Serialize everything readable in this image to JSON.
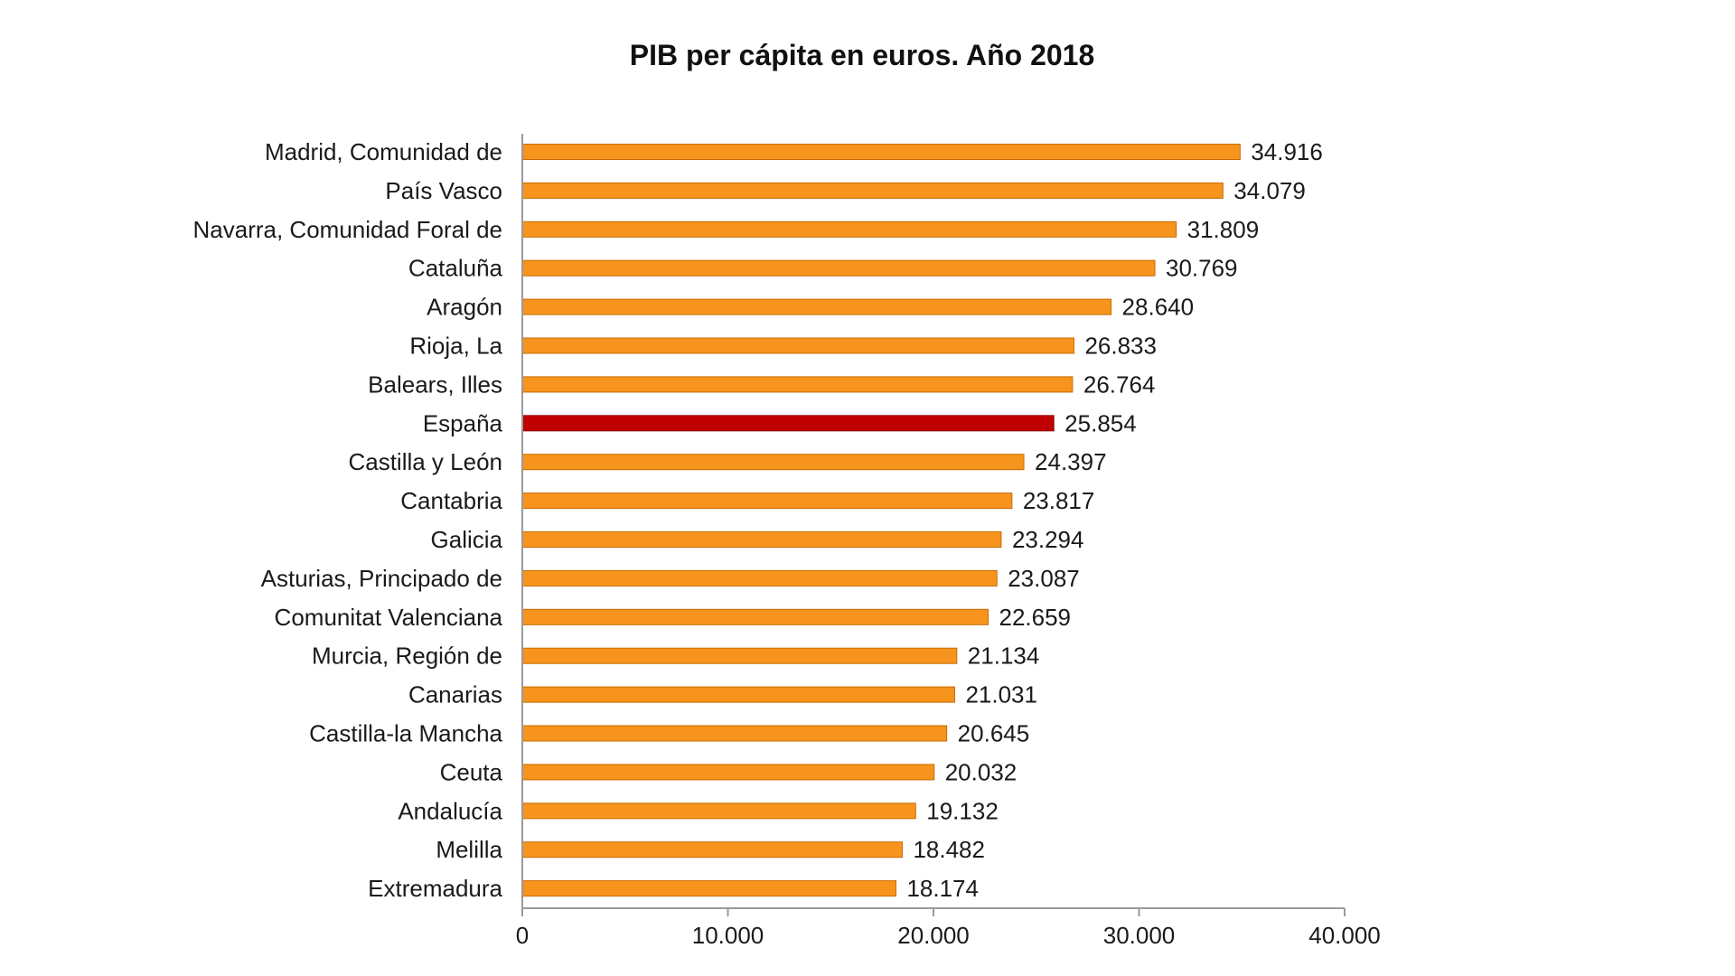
{
  "chart_data": {
    "type": "bar",
    "orientation": "horizontal",
    "title": "PIB per cápita en euros. Año 2018",
    "xlabel": "",
    "ylabel": "",
    "xlim": [
      0,
      40000
    ],
    "grid": false,
    "legend": "none",
    "categories": [
      "Madrid, Comunidad de",
      "País Vasco",
      "Navarra, Comunidad Foral de",
      "Cataluña",
      "Aragón",
      "Rioja, La",
      "Balears, Illes",
      "España",
      "Castilla y León",
      "Cantabria",
      "Galicia",
      "Asturias, Principado de",
      "Comunitat Valenciana",
      "Murcia, Región de",
      "Canarias",
      "Castilla-la Mancha",
      "Ceuta",
      "Andalucía",
      "Melilla",
      "Extremadura"
    ],
    "values": [
      34916,
      34079,
      31809,
      30769,
      28640,
      26833,
      26764,
      25854,
      24397,
      23817,
      23294,
      23087,
      22659,
      21134,
      21031,
      20645,
      20032,
      19132,
      18482,
      18174
    ],
    "value_labels": [
      "34.916",
      "34.079",
      "31.809",
      "30.769",
      "28.640",
      "26.833",
      "26.764",
      "25.854",
      "24.397",
      "23.817",
      "23.294",
      "23.087",
      "22.659",
      "21.134",
      "21.031",
      "20.645",
      "20.032",
      "19.132",
      "18.482",
      "18.174"
    ],
    "x_ticks": [
      0,
      10000,
      20000,
      30000,
      40000
    ],
    "x_tick_labels": [
      "0",
      "10.000",
      "20.000",
      "30.000",
      "40.000"
    ],
    "highlight_category": "España",
    "colors": {
      "bar": "#F7941D",
      "bar_border": "#C96A00",
      "highlight": "#C00000",
      "highlight_border": "#8A0000",
      "axis": "#9A9A9A"
    }
  }
}
